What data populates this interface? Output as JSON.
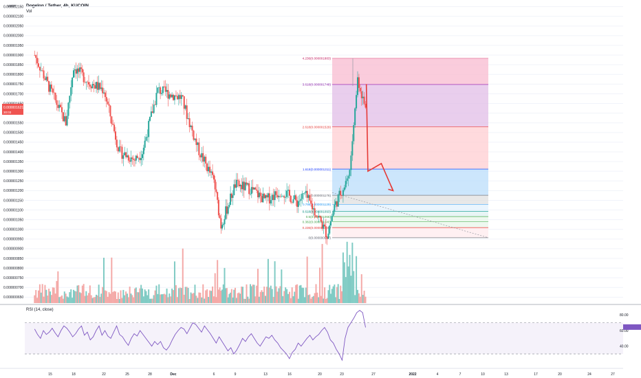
{
  "header": {
    "symbol_line": "Dogelon / Tether, 4h, KUCOIN",
    "volume_label": "Vol",
    "currency": "USDT"
  },
  "price_axis": {
    "labels": [
      "0.000002150",
      "0.000002100",
      "0.000002050",
      "0.000002000",
      "0.000001950",
      "0.000001900",
      "0.000001850",
      "0.000001800",
      "0.000001750",
      "0.000001700",
      "0.000001650",
      "0.000001600",
      "0.000001550",
      "0.000001500",
      "0.000001450",
      "0.000001400",
      "0.000001350",
      "0.000001300",
      "0.000001250",
      "0.000001200",
      "0.000001150",
      "0.000001100",
      "0.000001050",
      "0.000001000",
      "0.000000950",
      "0.000000900",
      "0.000000850",
      "0.000000800",
      "0.000000750",
      "0.000000700",
      "0.000000650"
    ],
    "current_price_label": "0.000001621",
    "countdown_label": "30:03"
  },
  "time_axis": {
    "labels": [
      "15",
      "18",
      "22",
      "25",
      "28",
      "Dec",
      "6",
      "9",
      "13",
      "16",
      "20",
      "23",
      "27",
      "2022",
      "4",
      "7",
      "10",
      "13",
      "17",
      "20",
      "24",
      "27"
    ]
  },
  "fibonacci": {
    "levels": [
      {
        "text": "4.236(0.000001883)",
        "price": 1.883e-06,
        "fill": "#f8bbd0",
        "line": "#e57399",
        "label_color": "#c2185b"
      },
      {
        "text": "3.618(0.000001748)",
        "price": 1.748e-06,
        "fill": "#e1bee7",
        "line": "#ab47bc",
        "label_color": "#8e24aa"
      },
      {
        "text": "2.618(0.000001529)",
        "price": 1.529e-06,
        "fill": "#ffcdd2",
        "line": "#ef5350",
        "label_color": "#e53935"
      },
      {
        "text": "1.618(0.000001311)",
        "price": 1.311e-06,
        "fill": "#bbdefb",
        "line": "#2962ff",
        "label_color": "#1e40ff"
      },
      {
        "text": "1(0.000001176)",
        "price": 1.176e-06,
        "fill": "#e0e0e0",
        "line": "#787b86",
        "label_color": "#5d606b"
      },
      {
        "text": "0.786(0.000001129)",
        "price": 1.129e-06,
        "fill": "#e3f2fd",
        "line": "#64b5f6",
        "label_color": "#2196f3"
      },
      {
        "text": "0.618(0.000001093)",
        "price": 1.093e-06,
        "fill": "#e0f2f1",
        "line": "#26a69a",
        "label_color": "#00897b"
      },
      {
        "text": "0.5(0.000001066)",
        "price": 1.066e-06,
        "fill": "#e8f5e9",
        "line": "#4caf50",
        "label_color": "#43a047"
      },
      {
        "text": "0.382(0.000001040)",
        "price": 1.04e-06,
        "fill": "#e8f5e9",
        "line": "#81c784",
        "label_color": "#43a047"
      },
      {
        "text": "0.236(0.000001009)",
        "price": 1.009e-06,
        "fill": "#ffebee",
        "line": "#ef5350",
        "label_color": "#e53935"
      },
      {
        "text": "0(0.000000957)",
        "price": 9.57e-07,
        "fill": "#ffebee",
        "line": "#787b86",
        "label_color": "#5d606b"
      }
    ]
  },
  "rsi": {
    "title": "RSI (14, close)",
    "axis_labels": [
      "80.00",
      "60.00",
      "40.00"
    ],
    "upper_band": 70,
    "lower_band": 30,
    "current_value": 64.5
  },
  "chart_data": [
    {
      "type": "candlestick",
      "title": "Dogelon / Tether, 4h, KUCOIN",
      "interval": "4h",
      "ylim": [
        6.3e-07,
        2.17e-06
      ],
      "approximate_close_path": [
        {
          "x": "Nov 13",
          "close": 1.9e-06
        },
        {
          "x": "Nov 15",
          "close": 1.72e-06
        },
        {
          "x": "Nov 17",
          "close": 1.55e-06
        },
        {
          "x": "Nov 18",
          "close": 1.84e-06
        },
        {
          "x": "Nov 20",
          "close": 1.76e-06
        },
        {
          "x": "Nov 22",
          "close": 1.72e-06
        },
        {
          "x": "Nov 24",
          "close": 1.4e-06
        },
        {
          "x": "Nov 26",
          "close": 1.36e-06
        },
        {
          "x": "Nov 27",
          "close": 1.4e-06
        },
        {
          "x": "Nov 29",
          "close": 1.72e-06
        },
        {
          "x": "Dec 1",
          "close": 1.68e-06
        },
        {
          "x": "Dec 3",
          "close": 1.42e-06
        },
        {
          "x": "Dec 5",
          "close": 1.25e-06
        },
        {
          "x": "Dec 6",
          "close": 1.02e-06
        },
        {
          "x": "Dec 8",
          "close": 1.23e-06
        },
        {
          "x": "Dec 10",
          "close": 1.21e-06
        },
        {
          "x": "Dec 12",
          "close": 1.15e-06
        },
        {
          "x": "Dec 14",
          "close": 1.2e-06
        },
        {
          "x": "Dec 16",
          "close": 1.14e-06
        },
        {
          "x": "Dec 17",
          "close": 1.18e-06
        },
        {
          "x": "Dec 19",
          "close": 1.05e-06
        },
        {
          "x": "Dec 20",
          "close": 9.7e-07
        },
        {
          "x": "Dec 21",
          "close": 1.12e-06
        },
        {
          "x": "Dec 22",
          "close": 1.2e-06
        },
        {
          "x": "Dec 23",
          "close": 1.3e-06
        },
        {
          "x": "Dec 24",
          "close": 1.78e-06
        },
        {
          "x": "Dec 25",
          "close": 1.62e-06
        }
      ],
      "projection_path": [
        {
          "x": "Dec 25",
          "price": 1.75e-06
        },
        {
          "x": "Dec 25",
          "price": 1.3e-06
        },
        {
          "x": "Dec 26",
          "price": 1.34e-06
        },
        {
          "x": "Dec 27",
          "price": 1.2e-06
        }
      ]
    },
    {
      "type": "line",
      "title": "RSI (14, close)",
      "ylim": [
        15,
        90
      ],
      "series": [
        {
          "values": [
            62,
            55,
            50,
            60,
            55,
            58,
            63,
            57,
            52,
            60,
            66,
            63,
            58,
            52,
            56,
            62,
            66,
            54,
            58,
            48,
            52,
            60,
            66,
            54,
            60,
            53,
            50,
            58,
            66,
            55,
            52,
            46,
            41,
            50,
            56,
            53,
            60,
            55,
            50,
            45,
            40,
            46,
            42,
            46,
            38,
            35,
            40,
            48,
            55,
            60,
            64,
            62,
            56,
            63,
            70,
            68,
            63,
            58,
            66,
            61,
            56,
            50,
            44,
            52,
            46,
            40,
            34,
            38,
            30,
            35,
            42,
            50,
            46,
            52,
            56,
            50,
            44,
            40,
            46,
            52,
            50,
            54,
            48,
            44,
            38,
            34,
            30,
            24,
            32,
            36,
            44,
            40,
            45,
            50,
            54,
            48,
            52,
            55,
            60,
            64,
            58,
            48,
            44,
            36,
            30,
            22,
            50,
            64,
            70,
            76,
            83,
            86,
            83,
            64
          ]
        }
      ]
    }
  ]
}
